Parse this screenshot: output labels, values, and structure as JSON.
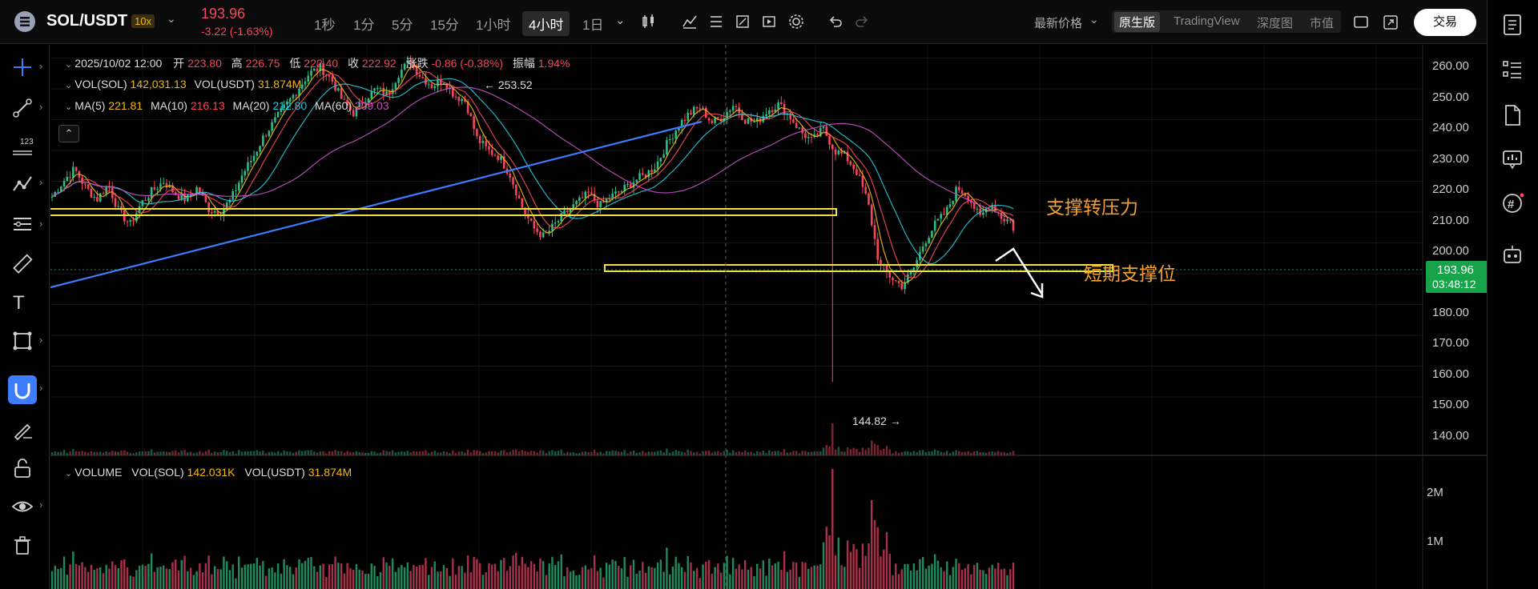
{
  "header": {
    "symbol": "SOL/USDT",
    "leverage": "10x",
    "price": "193.96",
    "change": "-3.22 (-1.63%)",
    "timeframes": [
      "1秒",
      "1分",
      "5分",
      "15分",
      "1小时",
      "4小时",
      "1日"
    ],
    "active_timeframe": "4小时",
    "price_type": "最新价格",
    "views": [
      "原生版",
      "TradingView",
      "深度图",
      "市值"
    ],
    "active_view": "原生版",
    "trade_label": "交易"
  },
  "legend": {
    "date": "2025/10/02 12:00",
    "o_label": "开",
    "o": "223.80",
    "h_label": "高",
    "h": "226.75",
    "l_label": "低",
    "l": "222.40",
    "c_label": "收",
    "c": "222.92",
    "chg_label": "涨跌",
    "chg": "-0.86 (-0.38%)",
    "amp_label": "振幅",
    "amp": "1.94%",
    "vol_sol_label": "VOL(SOL)",
    "vol_sol": "142,031.13",
    "vol_usdt_label": "VOL(USDT)",
    "vol_usdt": "31.874M",
    "ma5_label": "MA(5)",
    "ma5": "221.81",
    "ma10_label": "MA(10)",
    "ma10": "216.13",
    "ma20_label": "MA(20)",
    "ma20": "212.80",
    "ma60_label": "MA(60)",
    "ma60": "209.03"
  },
  "volume_legend": {
    "title": "VOLUME",
    "sol_label": "VOL(SOL)",
    "sol": "142.031K",
    "usdt_label": "VOL(USDT)",
    "usdt": "31.874M"
  },
  "annotations": {
    "high_marker": "← 253.52",
    "low_marker": "144.82 →",
    "resistance_label": "支撑转压力",
    "support_label": "短期支撑位"
  },
  "price_axis": {
    "ticks": [
      "260.00",
      "250.00",
      "240.00",
      "230.00",
      "220.00",
      "210.00",
      "200.00",
      "180.00",
      "170.00",
      "160.00",
      "150.00",
      "140.00"
    ],
    "current_price": "193.96",
    "countdown": "03:48:12"
  },
  "volume_axis": {
    "ticks": [
      "2M",
      "1M"
    ]
  },
  "colors": {
    "up": "#2ebd85",
    "down": "#f6465d",
    "accent": "#f0b90b",
    "trendline": "#3d7bff"
  },
  "chart_data": {
    "type": "candlestick",
    "price_range": [
      135,
      263
    ],
    "high": 253.52,
    "low": 144.82,
    "last": 193.96,
    "resistance_zone": [
      211,
      213
    ],
    "support_zone": [
      193,
      195
    ],
    "price_path": [
      205,
      210,
      214,
      208,
      204,
      209,
      200,
      196,
      203,
      207,
      210,
      206,
      204,
      208,
      201,
      200,
      204,
      212,
      218,
      225,
      230,
      235,
      240,
      245,
      247,
      243,
      236,
      232,
      237,
      240,
      238,
      245,
      249,
      244,
      241,
      243,
      238,
      236,
      224,
      220,
      218,
      212,
      202,
      195,
      192,
      196,
      200,
      203,
      206,
      202,
      205,
      207,
      210,
      212,
      215,
      222,
      228,
      232,
      234,
      229,
      231,
      235,
      230,
      229,
      233,
      235,
      231,
      226,
      223,
      227,
      220,
      218,
      213,
      203,
      183,
      179,
      176,
      181,
      190,
      196,
      200,
      208,
      205,
      198,
      203,
      198,
      197
    ]
  }
}
